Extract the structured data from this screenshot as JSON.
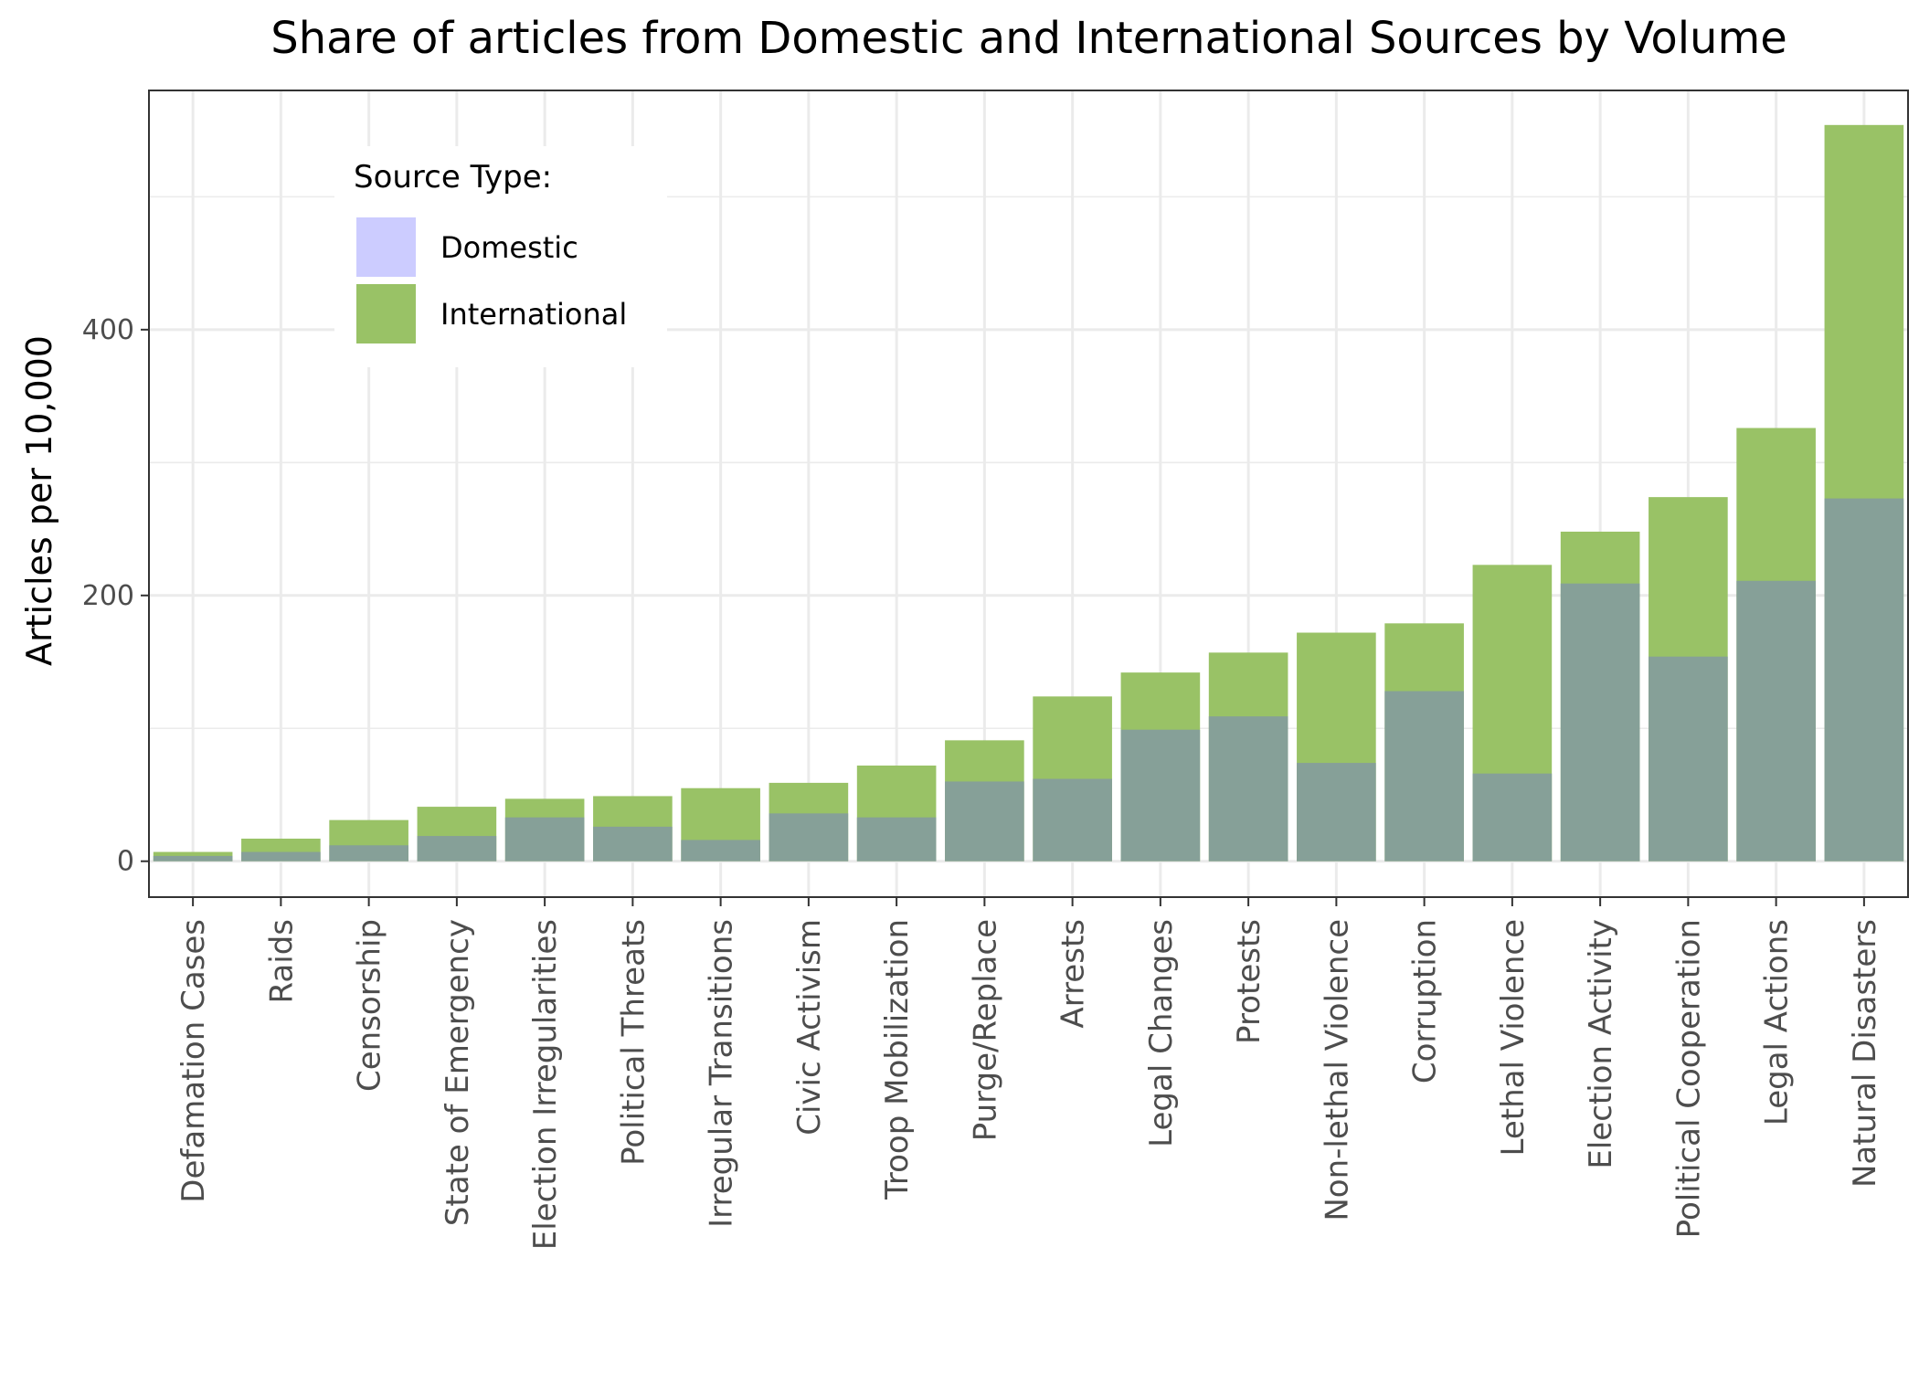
{
  "chart_data": {
    "type": "bar",
    "title": "Share of articles from Domestic and International Sources by Volume",
    "xlabel": "",
    "ylabel": "Articles per 10,000",
    "ylim": [
      -27,
      580
    ],
    "yticks": [
      0,
      200,
      400
    ],
    "grid": true,
    "bar_mode": "overlay",
    "categories": [
      "Defamation Cases",
      "Raids",
      "Censorship",
      "State of Emergency",
      "Election Irregularities",
      "Political Threats",
      "Irregular Transitions",
      "Civic Activism",
      "Troop Mobilization",
      "Purge/Replace",
      "Arrests",
      "Legal Changes",
      "Protests",
      "Non-lethal Violence",
      "Corruption",
      "Lethal Violence",
      "Election Activity",
      "Political Cooperation",
      "Legal Actions",
      "Natural Disasters"
    ],
    "series": [
      {
        "name": "Domestic",
        "color": "#ccccff",
        "values": [
          4,
          7,
          12,
          19,
          33,
          26,
          16,
          36,
          33,
          60,
          62,
          99,
          109,
          74,
          128,
          66,
          209,
          154,
          211,
          273
        ]
      },
      {
        "name": "International",
        "color": "#99c266",
        "values": [
          7,
          17,
          31,
          41,
          47,
          49,
          55,
          59,
          72,
          91,
          124,
          142,
          157,
          172,
          179,
          223,
          248,
          274,
          326,
          554
        ]
      }
    ],
    "overlap_color": "#86a098",
    "legend": {
      "title": "Source Type:",
      "position": "top-left"
    }
  }
}
